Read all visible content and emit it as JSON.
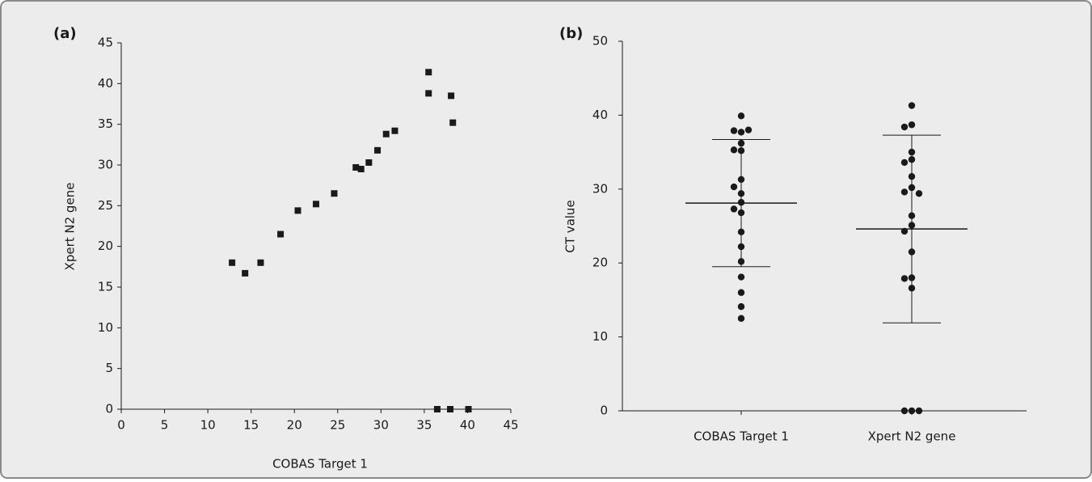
{
  "chart_data": [
    {
      "type": "scatter",
      "label": "(a)",
      "xlabel": "COBAS Target 1",
      "ylabel": "Xpert N2 gene",
      "x": [
        12.8,
        14.3,
        16.1,
        18.4,
        20.4,
        22.5,
        24.6,
        27.1,
        27.7,
        28.6,
        29.6,
        30.6,
        31.6,
        35.5,
        35.5,
        38.1,
        38.3,
        36.5,
        38.0,
        40.1
      ],
      "y": [
        18.0,
        16.7,
        18.0,
        21.5,
        24.4,
        25.2,
        26.5,
        29.7,
        29.5,
        30.3,
        31.8,
        33.8,
        34.2,
        41.4,
        38.8,
        38.5,
        35.2,
        0,
        0,
        0
      ],
      "color": "#1a1a1a",
      "xlim": [
        0,
        45
      ],
      "xticks": [
        0,
        5,
        10,
        15,
        20,
        25,
        30,
        35,
        40,
        45
      ],
      "ylim": [
        0,
        45
      ],
      "yticks": [
        0,
        5,
        10,
        15,
        20,
        25,
        30,
        35,
        40,
        45
      ]
    },
    {
      "type": "strip",
      "label": "(b)",
      "ylabel": "CT value",
      "color": "#1a1a1a",
      "groups": [
        {
          "name": "COBAS Target 1",
          "values": [
            12.5,
            14.1,
            16.0,
            18.1,
            20.2,
            22.2,
            24.2,
            26.8,
            27.3,
            28.2,
            29.4,
            30.3,
            31.3,
            35.2,
            35.3,
            36.2,
            37.7,
            37.9,
            38.0,
            39.9
          ],
          "mean": 28.1,
          "sd": 8.6
        },
        {
          "name": "Xpert N2 gene",
          "values": [
            41.3,
            38.7,
            38.4,
            35.0,
            34.0,
            33.6,
            31.7,
            30.2,
            29.6,
            29.4,
            26.4,
            25.1,
            24.3,
            21.5,
            18.0,
            17.9,
            16.6,
            0,
            0,
            0
          ],
          "mean": 24.6,
          "sd": 12.7
        }
      ],
      "ylim": [
        0,
        50
      ],
      "yticks": [
        0,
        10,
        20,
        30,
        40,
        50
      ]
    }
  ]
}
